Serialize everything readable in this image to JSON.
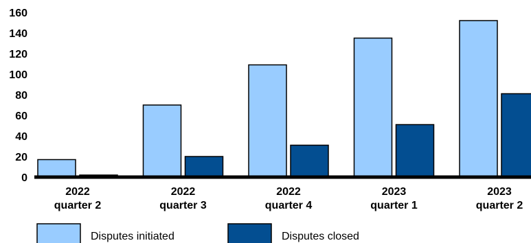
{
  "chart_data": {
    "type": "bar",
    "categories": [
      [
        "2022",
        "quarter 2"
      ],
      [
        "2022",
        "quarter 3"
      ],
      [
        "2022",
        "quarter 4"
      ],
      [
        "2023",
        "quarter 1"
      ],
      [
        "2023",
        "quarter 2"
      ]
    ],
    "series": [
      {
        "name": "Disputes initiated",
        "color": "#99ccff",
        "values": [
          17,
          70,
          109,
          135,
          152
        ]
      },
      {
        "name": "Disputes closed",
        "color": "#034e91",
        "values": [
          2,
          20,
          31,
          51,
          81
        ]
      }
    ],
    "ylim": [
      0,
      160
    ],
    "yticks": [
      0,
      20,
      40,
      60,
      80,
      100,
      120,
      140,
      160
    ],
    "grid": false,
    "legend_position": "bottom"
  }
}
